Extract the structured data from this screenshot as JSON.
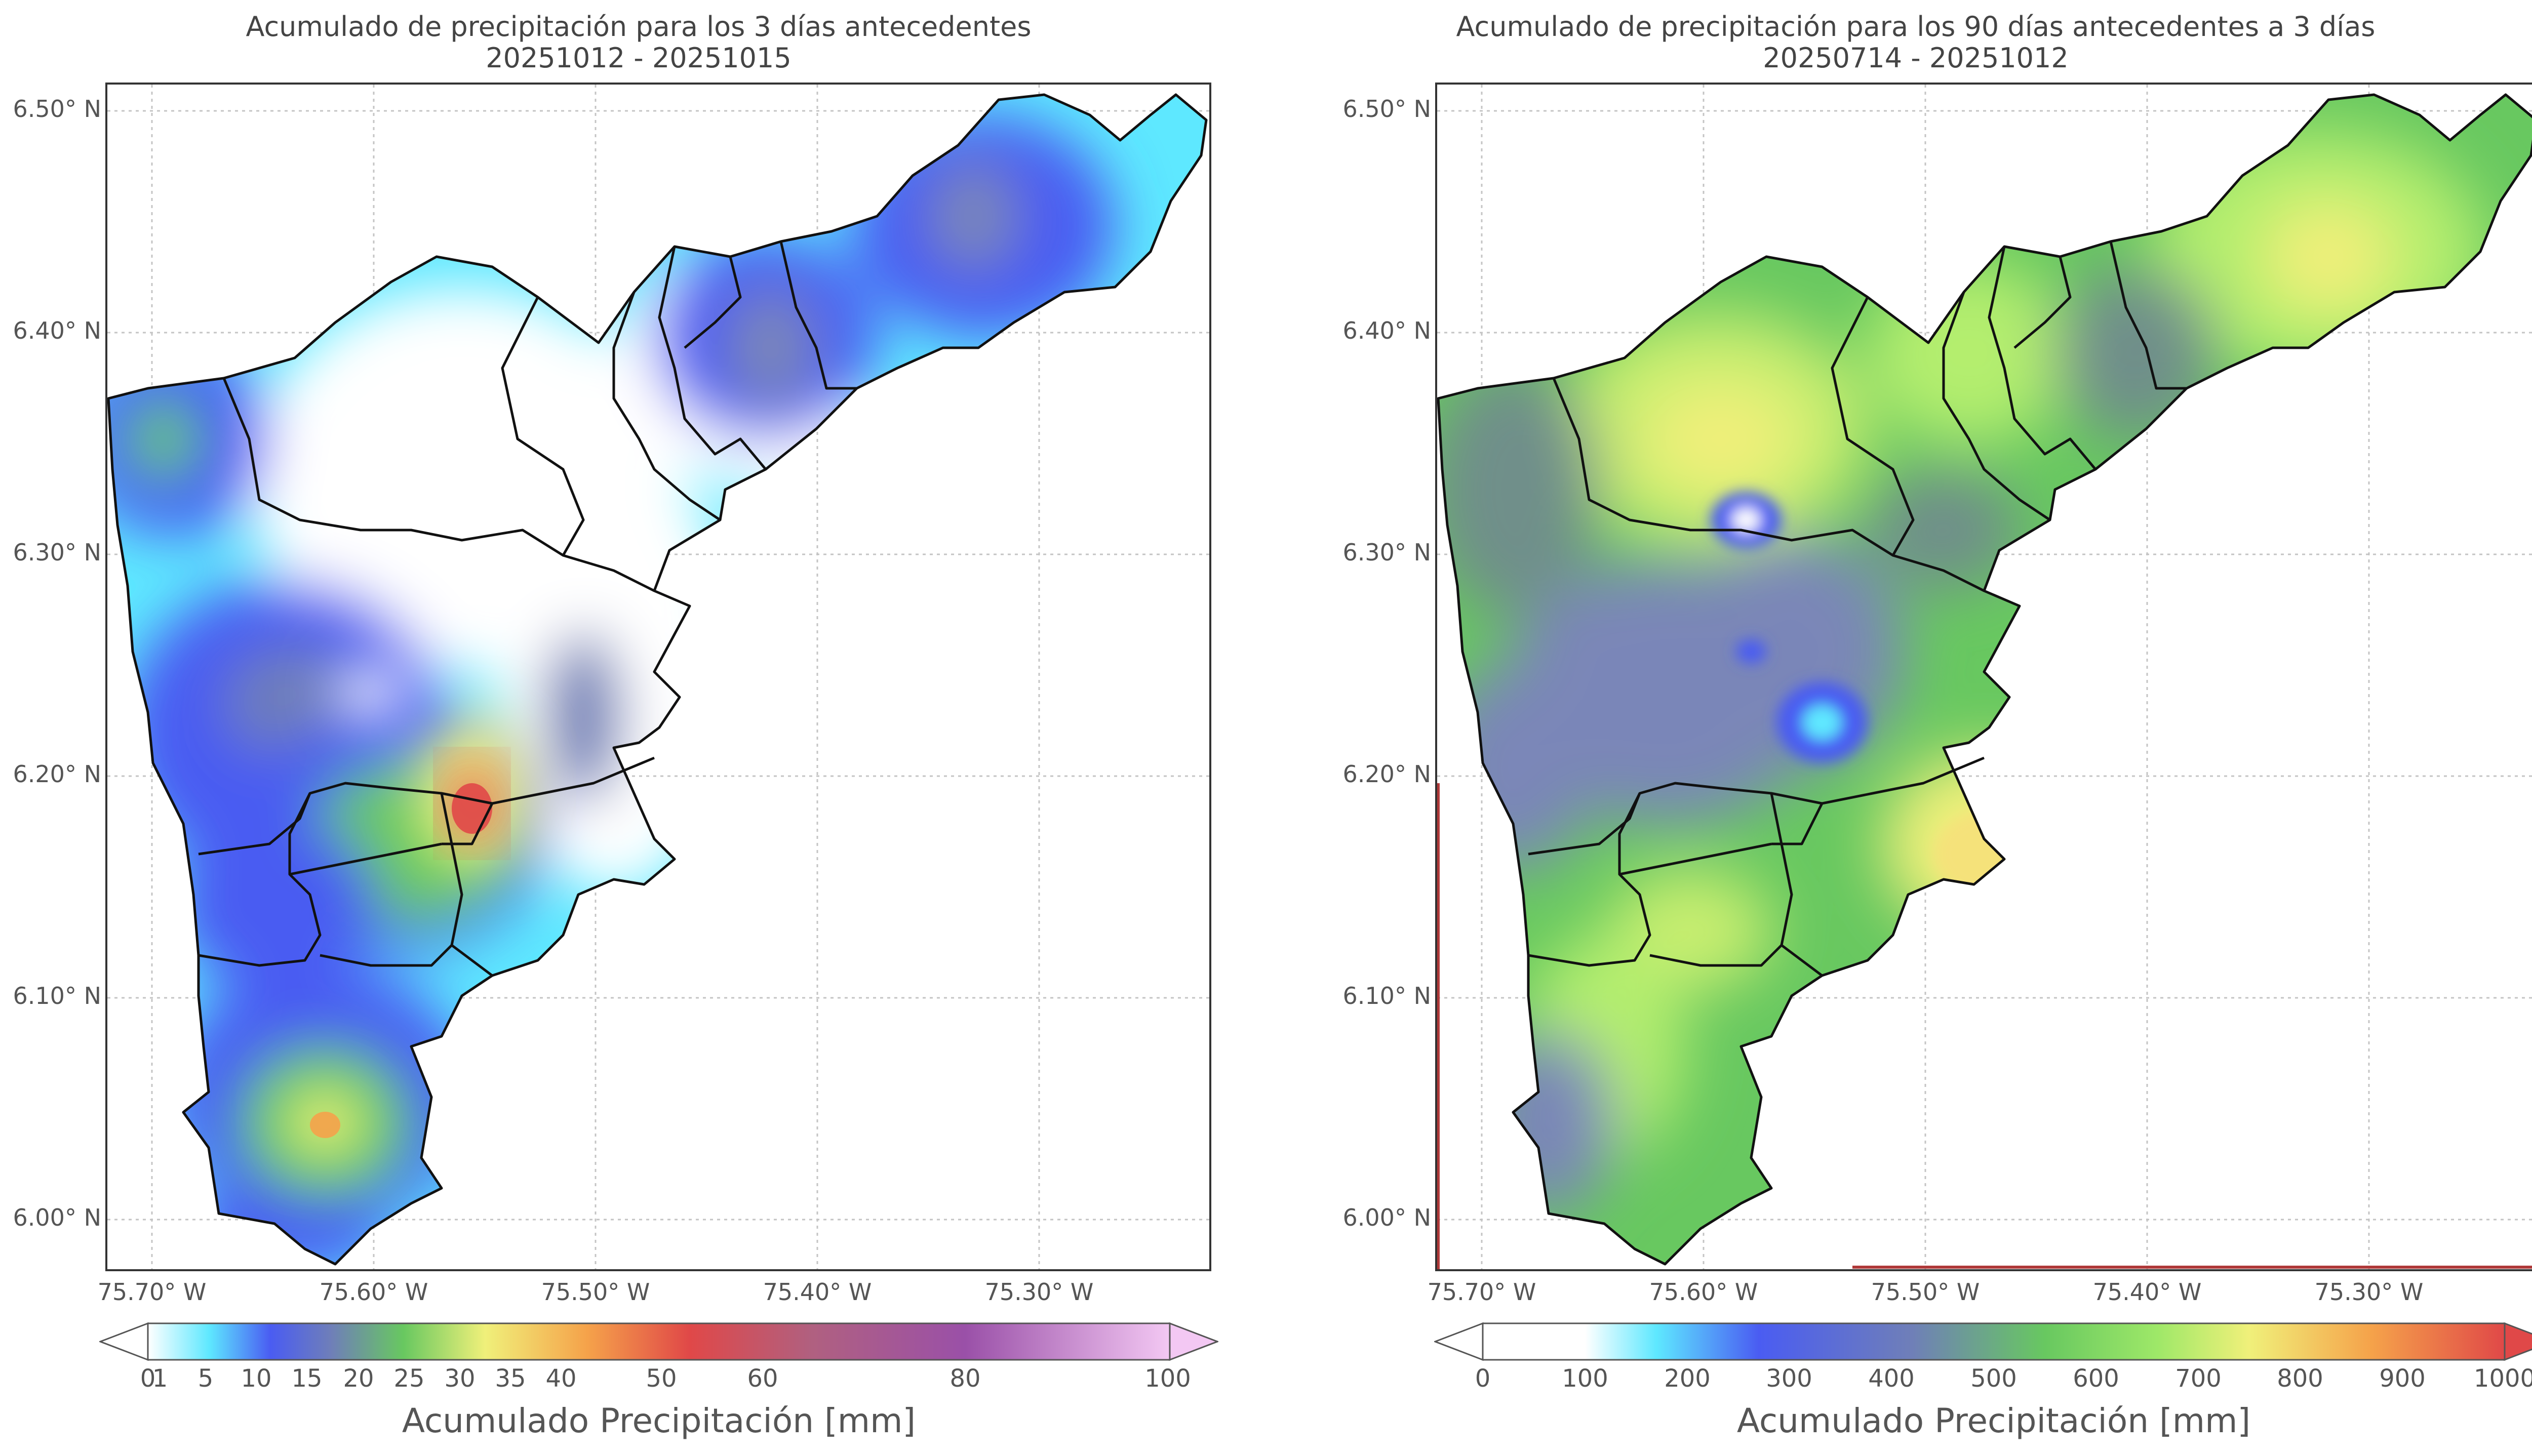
{
  "panels": [
    {
      "title_line1": "Acumulado de precipitación para los 3 días antecedentes",
      "title_line2": "20251012 - 20251015",
      "lat_ticks": [
        "6.50° N",
        "6.40° N",
        "6.30° N",
        "6.20° N",
        "6.10° N",
        "6.00° N"
      ],
      "lon_ticks": [
        "75.70° W",
        "75.60° W",
        "75.50° W",
        "75.40° W",
        "75.30° W"
      ],
      "colorbar_label": "Acumulado Precipitación [mm]",
      "colorbar_ticks": [
        "0",
        "1",
        "5",
        "10",
        "15",
        "20",
        "25",
        "30",
        "35",
        "40",
        "50",
        "60",
        "80",
        "100"
      ]
    },
    {
      "title_line1": "Acumulado de precipitación para los 90 días antecedentes a 3 días",
      "title_line2": "20250714 - 20251012",
      "lat_ticks": [
        "6.50° N",
        "6.40° N",
        "6.30° N",
        "6.20° N",
        "6.10° N",
        "6.00° N"
      ],
      "lon_ticks": [
        "75.70° W",
        "75.60° W",
        "75.50° W",
        "75.40° W",
        "75.30° W"
      ],
      "colorbar_label": "Acumulado Precipitación [mm]",
      "colorbar_ticks": [
        "0",
        "100",
        "200",
        "300",
        "400",
        "500",
        "600",
        "700",
        "800",
        "900",
        "1000"
      ]
    }
  ],
  "colors": {
    "left_scale": [
      "#ffffff",
      "#5ee8ff",
      "#4a5cf2",
      "#6f7fb8",
      "#68c860",
      "#f0f07a",
      "#f5a24a",
      "#e04848",
      "#b06080",
      "#9a50a8",
      "#f3c8f3"
    ],
    "right_scale": [
      "#ffffff",
      "#5ee8ff",
      "#4a5cf2",
      "#6f7fb8",
      "#68c860",
      "#9ee868",
      "#f0f07a",
      "#f5a24a",
      "#e04848"
    ],
    "boundary": "#111111",
    "grid": "#bdbdbd"
  }
}
